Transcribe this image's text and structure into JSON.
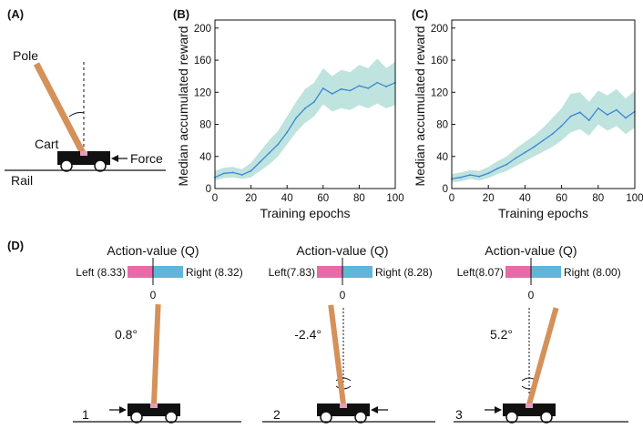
{
  "colors": {
    "pole": "#d4915a",
    "cart": "#111111",
    "rail": "#111111",
    "line": "#3a86d6",
    "band": "#bfe3de",
    "q_left": "#e86aa8",
    "q_right": "#5fb6d9"
  },
  "panel_a": {
    "label": "(A)",
    "pole_label": "Pole",
    "cart_label": "Cart",
    "force_label": "Force",
    "rail_label": "Rail"
  },
  "chart_data": [
    {
      "panel": "(B)",
      "type": "line",
      "title": "",
      "xlabel": "Training epochs",
      "ylabel": "Median accumulated reward",
      "xlim": [
        0,
        100
      ],
      "ylim": [
        0,
        210
      ],
      "xticks": [
        "0",
        "20",
        "40",
        "60",
        "80",
        "100"
      ],
      "yticks": [
        "0",
        "40",
        "80",
        "120",
        "160",
        "200"
      ],
      "series": [
        {
          "name": "median",
          "x": [
            0,
            5,
            10,
            15,
            20,
            25,
            30,
            35,
            40,
            45,
            50,
            55,
            60,
            65,
            70,
            75,
            80,
            85,
            90,
            95,
            100
          ],
          "values": [
            14,
            19,
            20,
            17,
            22,
            33,
            44,
            55,
            70,
            88,
            100,
            108,
            125,
            118,
            124,
            122,
            128,
            125,
            132,
            127,
            132
          ],
          "lower": [
            10,
            13,
            14,
            12,
            14,
            22,
            30,
            40,
            55,
            70,
            82,
            90,
            105,
            96,
            100,
            98,
            104,
            100,
            106,
            100,
            104
          ],
          "upper": [
            22,
            26,
            27,
            24,
            32,
            46,
            60,
            72,
            90,
            108,
            124,
            132,
            150,
            140,
            148,
            145,
            154,
            150,
            162,
            150,
            158
          ]
        }
      ]
    },
    {
      "panel": "(C)",
      "type": "line",
      "title": "",
      "xlabel": "Training epochs",
      "ylabel": "Median accumulated reward",
      "xlim": [
        0,
        100
      ],
      "ylim": [
        0,
        210
      ],
      "xticks": [
        "0",
        "20",
        "40",
        "60",
        "80",
        "100"
      ],
      "yticks": [
        "0",
        "40",
        "80",
        "120",
        "160",
        "200"
      ],
      "series": [
        {
          "name": "median",
          "x": [
            0,
            5,
            10,
            15,
            20,
            25,
            30,
            35,
            40,
            45,
            50,
            55,
            60,
            65,
            70,
            75,
            80,
            85,
            90,
            95,
            100
          ],
          "values": [
            12,
            14,
            17,
            15,
            19,
            25,
            30,
            38,
            45,
            52,
            60,
            68,
            78,
            90,
            95,
            85,
            100,
            92,
            98,
            88,
            96
          ],
          "lower": [
            8,
            9,
            12,
            10,
            13,
            18,
            22,
            28,
            34,
            40,
            46,
            52,
            60,
            70,
            74,
            66,
            80,
            72,
            78,
            68,
            76
          ],
          "upper": [
            18,
            20,
            23,
            22,
            27,
            34,
            40,
            50,
            58,
            66,
            76,
            88,
            100,
            118,
            120,
            108,
            122,
            116,
            124,
            112,
            122
          ]
        }
      ]
    }
  ],
  "panel_d": {
    "label": "(D)",
    "zero_label": "0",
    "scenarios": [
      {
        "number": "1",
        "title": "Action-value (Q)",
        "left_label": "Left (8.33)",
        "right_label": "Right (8.32)",
        "angle_label": "0.8°",
        "angle_deg": 0.8,
        "force_from": "left"
      },
      {
        "number": "2",
        "title": "Action-value (Q)",
        "left_label": "Left(7.83)",
        "right_label": "Right (8.28)",
        "angle_label": "-2.4°",
        "angle_deg": -2.4,
        "force_from": "right"
      },
      {
        "number": "3",
        "title": "Action-value (Q)",
        "left_label": "Left(8.07)",
        "right_label": "Right (8.00)",
        "angle_label": "5.2°",
        "angle_deg": 5.2,
        "force_from": "left"
      }
    ]
  }
}
